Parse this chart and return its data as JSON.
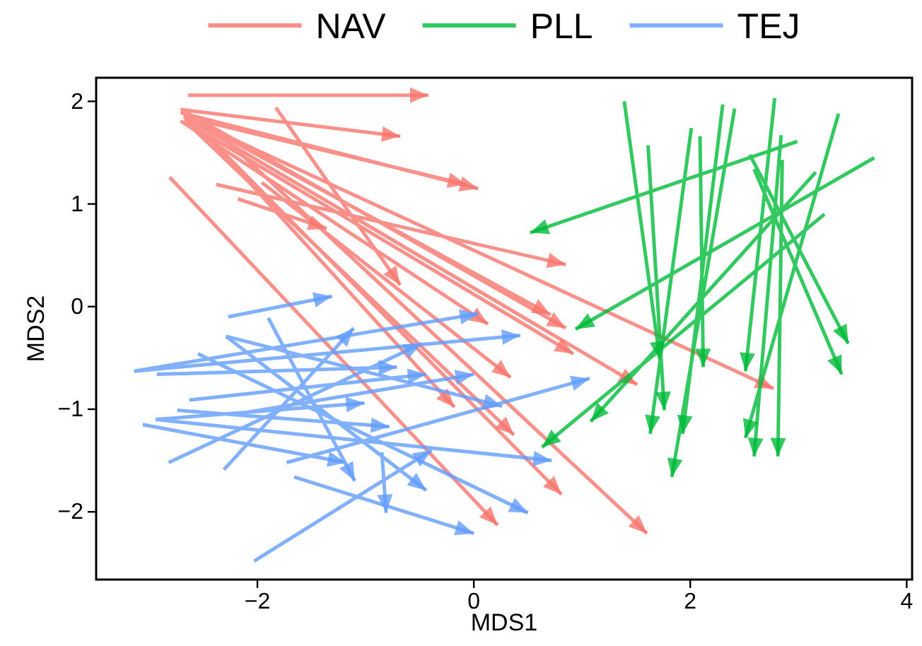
{
  "chart_data": {
    "type": "line",
    "xlabel": "MDS1",
    "ylabel": "MDS2",
    "xlim": [
      -3.49,
      4.05
    ],
    "ylim": [
      -2.66,
      2.23
    ],
    "xticks": [
      {
        "value": -2,
        "label": "−2"
      },
      0,
      2,
      4
    ],
    "yticks": [
      {
        "value": -2,
        "label": "−2"
      },
      {
        "value": -1,
        "label": "−1"
      },
      0,
      1,
      2
    ],
    "grid": false,
    "legend": "top",
    "series": [
      {
        "name": "NAV",
        "color": "#f8766d",
        "x": [
          -2.64,
          -0.42,
          null,
          -2.71,
          -0.68,
          null,
          -2.71,
          0.04,
          null,
          -2.68,
          -0.07,
          null,
          -2.38,
          0.85,
          null,
          -2.18,
          -1.36,
          null,
          -1.83,
          -0.68,
          null,
          -2.71,
          0.13,
          null,
          -2.68,
          0.71,
          null,
          -2.65,
          0.85,
          null,
          -2.68,
          0.92,
          null,
          -1.96,
          0.34,
          null,
          -2.68,
          1.51,
          null,
          -2.55,
          2.77,
          null,
          -2.81,
          0.22,
          null,
          -2.42,
          -0.18,
          null,
          -2.61,
          0.37,
          null,
          -2.48,
          0.81,
          null,
          -2.42,
          1.6
        ],
        "values": [
          2.06,
          2.06,
          null,
          1.92,
          1.66,
          null,
          1.89,
          1.15,
          null,
          1.85,
          1.19,
          null,
          1.19,
          0.41,
          null,
          1.05,
          0.76,
          null,
          1.94,
          0.21,
          null,
          1.81,
          -0.17,
          null,
          1.87,
          -0.08,
          null,
          1.89,
          -0.21,
          null,
          1.81,
          -0.46,
          null,
          1.21,
          -0.69,
          null,
          1.85,
          -0.76,
          null,
          1.79,
          -0.8,
          null,
          1.26,
          -2.13,
          null,
          1.61,
          -0.98,
          null,
          1.75,
          -1.25,
          null,
          1.68,
          -1.83,
          null,
          1.75,
          -2.21
        ]
      },
      {
        "name": "PLL",
        "color": "#00ba38",
        "x": [
          2.99,
          0.52,
          null,
          3.7,
          0.94,
          null,
          3.24,
          0.63,
          null,
          3.16,
          1.08,
          null,
          1.39,
          1.72,
          null,
          1.61,
          1.76,
          null,
          2.01,
          1.63,
          null,
          2.09,
          2.12,
          null,
          2.3,
          1.93,
          null,
          2.41,
          1.83,
          null,
          2.78,
          2.51,
          null,
          2.84,
          2.59,
          null,
          2.85,
          2.81,
          null,
          3.37,
          2.51,
          null,
          2.55,
          3.46,
          null,
          2.59,
          3.4
        ],
        "values": [
          1.61,
          0.72,
          null,
          1.45,
          -0.22,
          null,
          0.9,
          -1.37,
          null,
          1.31,
          -1.12,
          null,
          2.0,
          -0.52,
          null,
          1.57,
          -1.01,
          null,
          1.74,
          -1.24,
          null,
          1.66,
          -0.59,
          null,
          1.97,
          -1.24,
          null,
          1.93,
          -1.66,
          null,
          2.03,
          -0.63,
          null,
          1.67,
          -1.46,
          null,
          1.43,
          -1.46,
          null,
          1.88,
          -1.28,
          null,
          1.48,
          -0.36,
          null,
          1.34,
          -0.66
        ]
      },
      {
        "name": "TEJ",
        "color": "#619cff",
        "x": [
          -2.27,
          -1.31,
          null,
          -3.14,
          0.04,
          null,
          -3.14,
          0.43,
          null,
          -2.31,
          -1.11,
          null,
          -2.82,
          -0.48,
          null,
          -2.93,
          -0.71,
          null,
          -2.63,
          -0.44,
          null,
          -2.09,
          0.0,
          null,
          -1.73,
          1.07,
          null,
          -2.94,
          -1.01,
          null,
          -2.29,
          0.26,
          null,
          -3.06,
          -1.18,
          null,
          -1.9,
          -1.1,
          null,
          -2.29,
          -0.44,
          null,
          -2.03,
          -0.39,
          null,
          -0.85,
          -0.81,
          null,
          -1.66,
          0.0,
          null,
          -2.94,
          0.72,
          null,
          -2.55,
          0.5,
          null,
          -2.74,
          -0.78
        ],
        "values": [
          -0.1,
          0.1,
          null,
          -0.63,
          -0.07,
          null,
          -0.63,
          -0.28,
          null,
          -1.59,
          -0.21,
          null,
          -1.52,
          -0.36,
          null,
          -0.66,
          -0.59,
          null,
          -0.91,
          -0.66,
          null,
          -1.03,
          -0.66,
          null,
          -1.52,
          -0.7,
          null,
          -1.1,
          -0.94,
          null,
          -0.29,
          -0.97,
          null,
          -1.15,
          -1.52,
          null,
          -0.11,
          -1.7,
          null,
          -0.29,
          -1.79,
          null,
          -2.48,
          -1.4,
          null,
          -1.42,
          -2.01,
          null,
          -1.66,
          -2.21,
          null,
          -1.1,
          -1.5,
          null,
          -0.46,
          -2.01,
          null,
          -1.01,
          -1.17
        ]
      }
    ]
  }
}
